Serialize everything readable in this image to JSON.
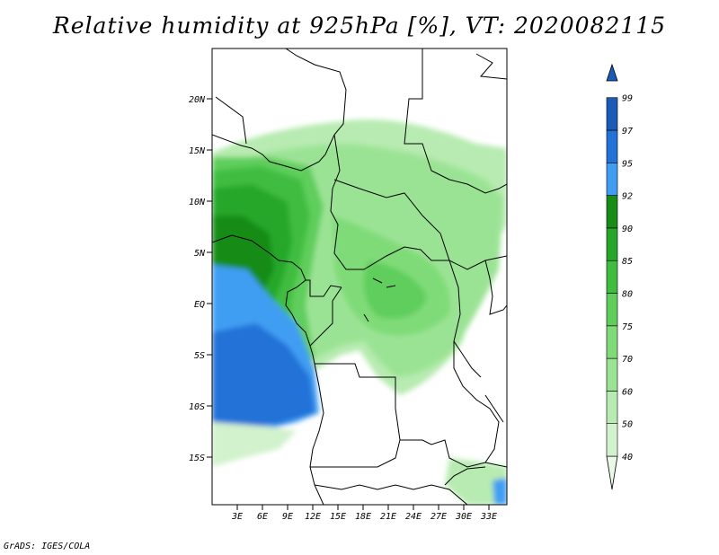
{
  "title": "Relative humidity at 925hPa [%], VT: 2020082115",
  "footer": "GrADS: IGES/COLA",
  "map": {
    "lat_labels": [
      "20N",
      "15N",
      "10N",
      "5N",
      "EQ",
      "5S",
      "10S",
      "15S"
    ],
    "lon_labels": [
      "3E",
      "6E",
      "9E",
      "12E",
      "15E",
      "18E",
      "21E",
      "24E",
      "27E",
      "30E",
      "33E"
    ]
  },
  "colorbar": {
    "levels": [
      {
        "label": "40",
        "color": "#e9f9e5"
      },
      {
        "label": "50",
        "color": "#d1f2cc"
      },
      {
        "label": "60",
        "color": "#b7ebb1"
      },
      {
        "label": "70",
        "color": "#9be394"
      },
      {
        "label": "75",
        "color": "#7fdb78"
      },
      {
        "label": "80",
        "color": "#5fce5b"
      },
      {
        "label": "85",
        "color": "#3fbd3f"
      },
      {
        "label": "90",
        "color": "#27a729"
      },
      {
        "label": "92",
        "color": "#178c17"
      },
      {
        "label": "95",
        "color": "#3f9ef2"
      },
      {
        "label": "97",
        "color": "#2372d8"
      },
      {
        "label": "99",
        "color": "#1b5bb8"
      }
    ]
  }
}
